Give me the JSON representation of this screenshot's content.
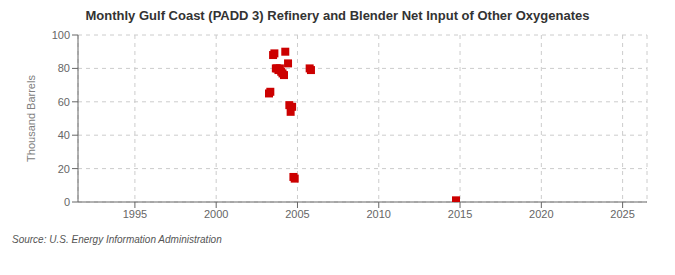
{
  "chart_data": {
    "type": "scatter",
    "title": "Monthly Gulf Coast (PADD 3) Refinery and Blender Net Input of Other Oxygenates",
    "ylabel": "Thousand Barrels",
    "source": "Source: U.S. Energy Information Administration",
    "x": [
      2003.25,
      2003.33,
      2003.5,
      2003.58,
      2003.67,
      2003.75,
      2003.83,
      2003.92,
      2004.0,
      2004.08,
      2004.17,
      2004.25,
      2004.42,
      2004.5,
      2004.58,
      2004.67,
      2004.75,
      2004.83,
      2005.75,
      2005.83,
      2014.75
    ],
    "values": [
      65,
      66,
      88,
      89,
      80,
      80,
      79,
      80,
      78,
      77,
      76,
      90,
      83,
      58,
      54,
      57,
      15,
      14,
      80,
      79,
      1
    ],
    "color": "#cc0000",
    "marker": "square",
    "xlim": [
      1991.5,
      2026.5
    ],
    "ylim": [
      0,
      100
    ],
    "xticks": [
      1995,
      2000,
      2005,
      2010,
      2015,
      2020,
      2025
    ],
    "yticks": [
      0,
      20,
      40,
      60,
      80,
      100
    ],
    "grid": true
  }
}
